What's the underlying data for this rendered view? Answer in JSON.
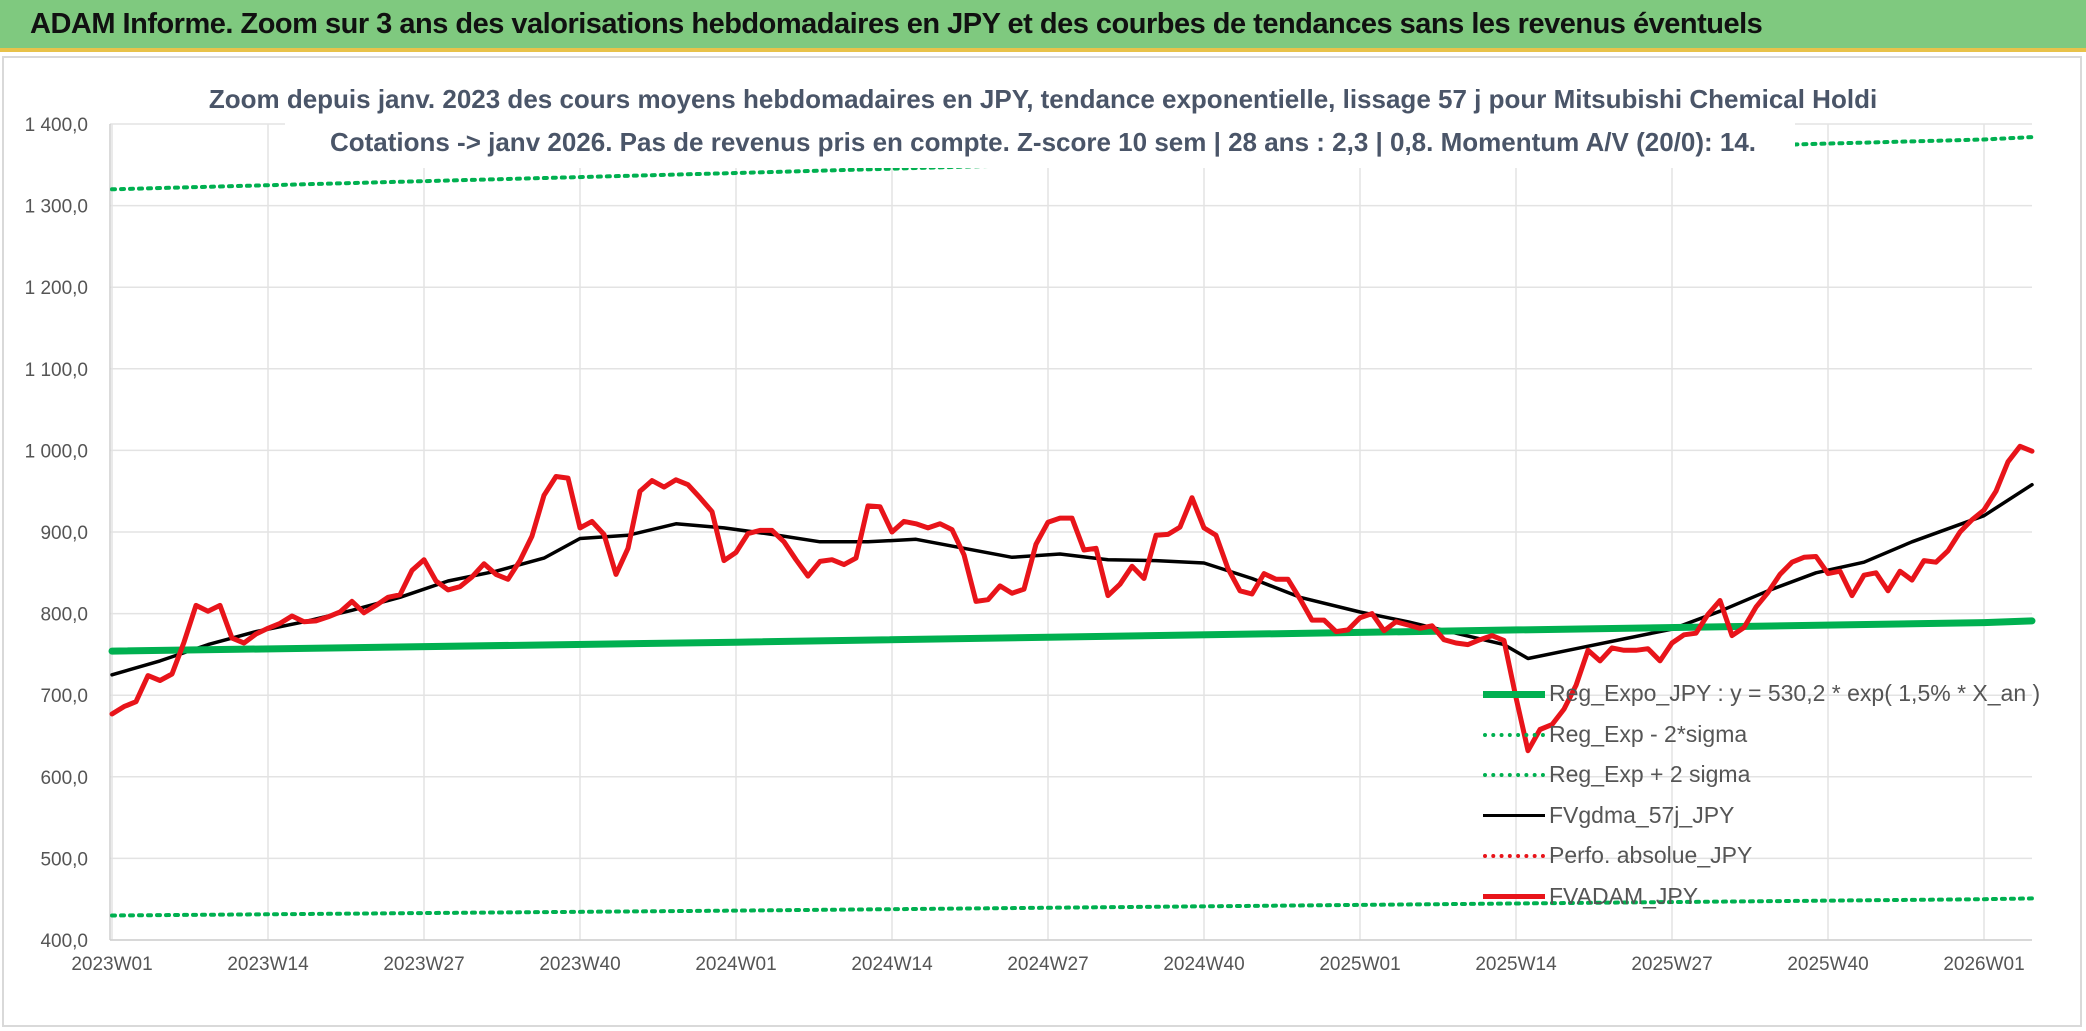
{
  "banner": {
    "title": "ADAM Informe. Zoom sur 3 ans des valorisations hebdomadaires en JPY et des courbes de tendances sans les revenus éventuels"
  },
  "chart_data": {
    "type": "line",
    "title": "Zoom depuis janv. 2023 des cours moyens hebdomadaires en JPY, tendance exponentielle, lissage 57 j pour Mitsubishi Chemical Holdi",
    "subtitle": "Cotations -> janv 2026. Pas de revenus pris en compte. Z-score 10 sem | 28 ans : 2,3 | 0,8. Momentum A/V (20/0): 14.",
    "xlabel": "",
    "ylabel": "",
    "ylim": [
      400,
      1400
    ],
    "yticks": [
      "400,0",
      "500,0",
      "600,0",
      "700,0",
      "800,0",
      "900,0",
      "1 000,0",
      "1 100,0",
      "1 200,0",
      "1 300,0",
      "1 400,0"
    ],
    "x_tick_labels": [
      "2023W01",
      "2023W14",
      "2023W27",
      "2023W40",
      "2024W01",
      "2024W14",
      "2024W27",
      "2024W40",
      "2025W01",
      "2025W14",
      "2025W27",
      "2025W40",
      "2026W01"
    ],
    "x_start_week": "2023W01",
    "x_end_week": "2026W05",
    "grid": true,
    "legend_position": "bottom-right",
    "series": [
      {
        "name": "Reg_Expo_JPY : y = 530,2 * exp( 1,5% *  X_an )",
        "color": "#00b050",
        "style": "solid-thick",
        "x": [
          "2023W01",
          "2024W01",
          "2025W01",
          "2026W01",
          "2026W05"
        ],
        "values": [
          754,
          765,
          777,
          789,
          791
        ]
      },
      {
        "name": "Reg_Exp - 2*sigma",
        "color": "#00b050",
        "style": "dotted",
        "x": [
          "2023W01",
          "2024W01",
          "2025W01",
          "2026W01",
          "2026W05"
        ],
        "values": [
          430,
          436,
          443,
          450,
          451
        ]
      },
      {
        "name": "Reg_Exp + 2 sigma",
        "color": "#00b050",
        "style": "dotted",
        "x": [
          "2023W01",
          "2024W01",
          "2025W01",
          "2026W01",
          "2026W05"
        ],
        "values": [
          1320,
          1340,
          1361,
          1381,
          1384
        ]
      },
      {
        "name": "FVgdma_57j_JPY",
        "color": "#000000",
        "style": "solid",
        "x": [
          "2023W01",
          "2023W05",
          "2023W09",
          "2023W13",
          "2023W17",
          "2023W21",
          "2023W25",
          "2023W29",
          "2023W33",
          "2023W37",
          "2023W40",
          "2023W44",
          "2023W48",
          "2023W52",
          "2024W04",
          "2024W08",
          "2024W12",
          "2024W16",
          "2024W20",
          "2024W24",
          "2024W28",
          "2024W32",
          "2024W36",
          "2024W40",
          "2024W44",
          "2024W48",
          "2025W01",
          "2025W05",
          "2025W09",
          "2025W13",
          "2025W15",
          "2025W19",
          "2025W23",
          "2025W27",
          "2025W31",
          "2025W35",
          "2025W39",
          "2025W43",
          "2025W47",
          "2026W01",
          "2026W05"
        ],
        "values": [
          725,
          742,
          762,
          778,
          790,
          804,
          820,
          840,
          852,
          868,
          892,
          896,
          910,
          905,
          897,
          888,
          888,
          891,
          880,
          869,
          873,
          866,
          865,
          862,
          843,
          820,
          802,
          790,
          776,
          762,
          745,
          757,
          769,
          781,
          803,
          828,
          850,
          863,
          888,
          920,
          958
        ]
      },
      {
        "name": "Perfo. absolue_JPY",
        "color": "#e8141a",
        "style": "dotted",
        "x": [],
        "values": []
      },
      {
        "name": "FVADAM_JPY",
        "color": "#e8141a",
        "style": "solid-thick",
        "x": [
          "2023W01",
          "2023W02",
          "2023W03",
          "2023W04",
          "2023W05",
          "2023W06",
          "2023W07",
          "2023W08",
          "2023W09",
          "2023W10",
          "2023W11",
          "2023W12",
          "2023W13",
          "2023W14",
          "2023W15",
          "2023W16",
          "2023W17",
          "2023W18",
          "2023W19",
          "2023W20",
          "2023W21",
          "2023W22",
          "2023W23",
          "2023W24",
          "2023W25",
          "2023W26",
          "2023W27",
          "2023W28",
          "2023W29",
          "2023W30",
          "2023W31",
          "2023W32",
          "2023W33",
          "2023W34",
          "2023W35",
          "2023W36",
          "2023W37",
          "2023W38",
          "2023W39",
          "2023W40",
          "2023W41",
          "2023W42",
          "2023W43",
          "2023W44",
          "2023W45",
          "2023W46",
          "2023W47",
          "2023W48",
          "2023W49",
          "2023W50",
          "2023W51",
          "2023W52",
          "2024W01",
          "2024W02",
          "2024W03",
          "2024W04",
          "2024W05",
          "2024W06",
          "2024W07",
          "2024W08",
          "2024W09",
          "2024W10",
          "2024W11",
          "2024W12",
          "2024W13",
          "2024W14",
          "2024W15",
          "2024W16",
          "2024W17",
          "2024W18",
          "2024W19",
          "2024W20",
          "2024W21",
          "2024W22",
          "2024W23",
          "2024W24",
          "2024W25",
          "2024W26",
          "2024W27",
          "2024W28",
          "2024W29",
          "2024W30",
          "2024W31",
          "2024W32",
          "2024W33",
          "2024W34",
          "2024W35",
          "2024W36",
          "2024W37",
          "2024W38",
          "2024W39",
          "2024W40",
          "2024W41",
          "2024W42",
          "2024W43",
          "2024W44",
          "2024W45",
          "2024W46",
          "2024W47",
          "2024W48",
          "2024W49",
          "2024W50",
          "2024W51",
          "2024W52",
          "2025W01",
          "2025W02",
          "2025W03",
          "2025W04",
          "2025W05",
          "2025W06",
          "2025W07",
          "2025W08",
          "2025W09",
          "2025W10",
          "2025W11",
          "2025W12",
          "2025W13",
          "2025W14",
          "2025W15",
          "2025W16",
          "2025W17",
          "2025W18",
          "2025W19",
          "2025W20",
          "2025W21",
          "2025W22",
          "2025W23",
          "2025W24",
          "2025W25",
          "2025W26",
          "2025W27",
          "2025W28",
          "2025W29",
          "2025W30",
          "2025W31",
          "2025W32",
          "2025W33",
          "2025W34",
          "2025W35",
          "2025W36",
          "2025W37",
          "2025W38",
          "2025W39",
          "2025W40",
          "2025W41",
          "2025W42",
          "2025W43",
          "2025W44",
          "2025W45",
          "2025W46",
          "2025W47",
          "2025W48",
          "2025W49",
          "2025W50",
          "2025W51",
          "2025W52",
          "2026W01",
          "2026W02",
          "2026W03",
          "2026W04",
          "2026W05"
        ],
        "values": [
          677,
          686,
          692,
          724,
          718,
          726,
          765,
          810,
          803,
          810,
          770,
          764,
          775,
          782,
          788,
          797,
          790,
          791,
          796,
          802,
          815,
          801,
          810,
          820,
          823,
          853,
          866,
          840,
          829,
          833,
          845,
          861,
          848,
          842,
          865,
          895,
          945,
          968,
          966,
          905,
          913,
          897,
          848,
          880,
          950,
          963,
          955,
          964,
          958,
          942,
          925,
          865,
          875,
          898,
          902,
          902,
          888,
          866,
          846,
          864,
          866,
          860,
          868,
          932,
          931,
          900,
          913,
          910,
          905,
          910,
          903,
          872,
          815,
          817,
          834,
          825,
          830,
          885,
          912,
          917,
          917,
          878,
          880,
          822,
          836,
          858,
          843,
          896,
          897,
          906,
          942,
          905,
          896,
          855,
          828,
          824,
          849,
          842,
          842,
          818,
          792,
          792,
          778,
          780,
          795,
          800,
          779,
          790,
          786,
          782,
          785,
          768,
          764,
          762,
          768,
          773,
          767,
          697,
          632,
          658,
          664,
          683,
          712,
          755,
          742,
          758,
          755,
          755,
          757,
          742,
          764,
          774,
          776,
          799,
          816,
          773,
          783,
          808,
          826,
          848,
          863,
          869,
          870,
          849,
          852,
          822,
          847,
          850,
          828,
          852,
          841,
          865,
          863,
          877,
          900,
          915,
          927,
          950,
          986,
          1005,
          999
        ]
      }
    ]
  }
}
